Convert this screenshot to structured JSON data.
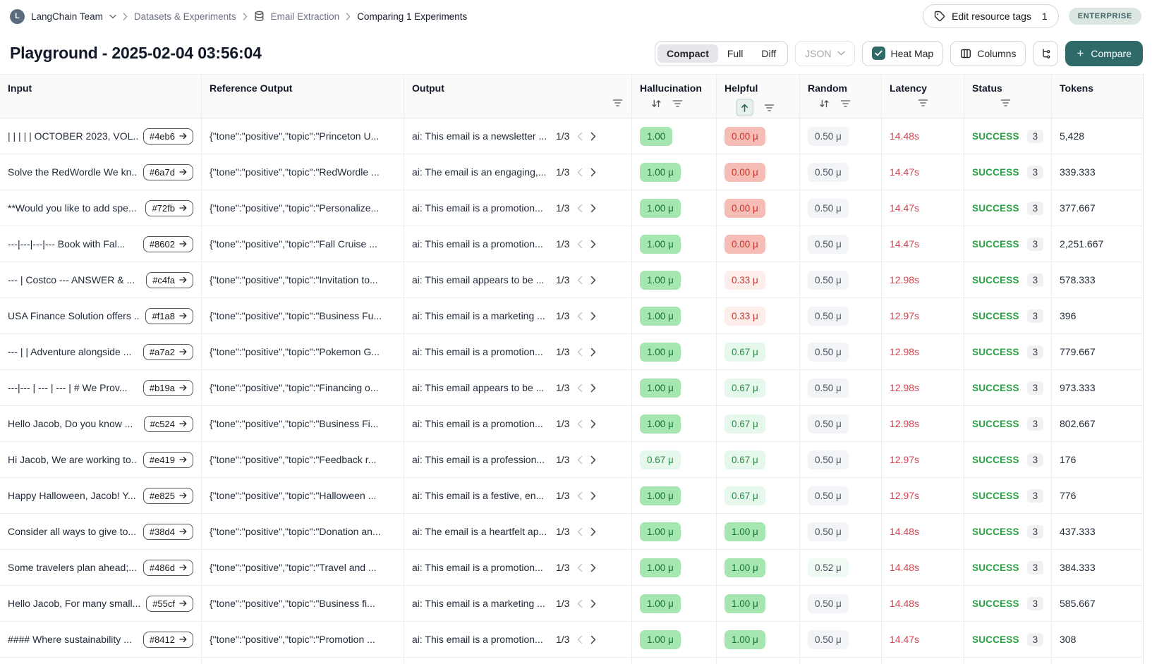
{
  "breadcrumb": {
    "team": "LangChain Team",
    "crumb1": "Datasets & Experiments",
    "crumb2": "Email Extraction",
    "crumb3": "Comparing 1 Experiments"
  },
  "header": {
    "edit_tags_label": "Edit resource tags",
    "edit_tags_count": "1",
    "plan_badge": "ENTERPRISE",
    "title": "Playground - 2025-02-04 03:56:04"
  },
  "toolbar": {
    "view_modes": [
      "Compact",
      "Full",
      "Diff"
    ],
    "active_view": "Compact",
    "json_label": "JSON",
    "heatmap_label": "Heat Map",
    "heatmap_checked": true,
    "columns_label": "Columns",
    "compare_label": "Compare",
    "accent_color": "#2f6a69"
  },
  "table": {
    "columns": [
      {
        "label": "Input",
        "sort": "none",
        "filter": false
      },
      {
        "label": "Reference Output",
        "sort": "none",
        "filter": false
      },
      {
        "label": "Output",
        "sort": "none",
        "filter": true
      },
      {
        "label": "Hallucination",
        "sort": "both",
        "filter": true
      },
      {
        "label": "Helpful",
        "sort": "asc",
        "filter": true
      },
      {
        "label": "Random",
        "sort": "both",
        "filter": true
      },
      {
        "label": "Latency",
        "sort": "none",
        "filter": true
      },
      {
        "label": "Status",
        "sort": "none",
        "filter": true
      },
      {
        "label": "Tokens",
        "sort": "none",
        "filter": false
      }
    ],
    "rows": [
      {
        "input": "| | | | | OCTOBER 2023, VOL...",
        "hash": "#4eb6",
        "reference": "{\"tone\":\"positive\",\"topic\":\"Princeton U...",
        "output": "ai: This email is a newsletter ...",
        "pager": "1/3",
        "hallucination": {
          "text": "1.00",
          "tone": "g2"
        },
        "helpful": {
          "text": "0.00 μ",
          "tone": "r2"
        },
        "random": {
          "text": "0.50 μ",
          "tone": "n"
        },
        "latency": "14.48s",
        "status": "SUCCESS",
        "status_count": "3",
        "tokens": "5,428"
      },
      {
        "input": "Solve the RedWordle We kn...",
        "hash": "#6a7d",
        "reference": "{\"tone\":\"positive\",\"topic\":\"RedWordle ...",
        "output": "ai: The email is an engaging,...",
        "pager": "1/3",
        "hallucination": {
          "text": "1.00 μ",
          "tone": "g2"
        },
        "helpful": {
          "text": "0.00 μ",
          "tone": "r2"
        },
        "random": {
          "text": "0.50 μ",
          "tone": "n"
        },
        "latency": "14.47s",
        "status": "SUCCESS",
        "status_count": "3",
        "tokens": "339.333"
      },
      {
        "input": "**Would you like to add spe...",
        "hash": "#72fb",
        "reference": "{\"tone\":\"positive\",\"topic\":\"Personalize...",
        "output": "ai: This email is a promotion...",
        "pager": "1/3",
        "hallucination": {
          "text": "1.00 μ",
          "tone": "g2"
        },
        "helpful": {
          "text": "0.00 μ",
          "tone": "r2"
        },
        "random": {
          "text": "0.50 μ",
          "tone": "n"
        },
        "latency": "14.47s",
        "status": "SUCCESS",
        "status_count": "3",
        "tokens": "377.667"
      },
      {
        "input": "---|---|---|--- Book with Fal...",
        "hash": "#8602",
        "reference": "{\"tone\":\"positive\",\"topic\":\"Fall Cruise ...",
        "output": "ai: This email is a promotion...",
        "pager": "1/3",
        "hallucination": {
          "text": "1.00 μ",
          "tone": "g2"
        },
        "helpful": {
          "text": "0.00 μ",
          "tone": "r2"
        },
        "random": {
          "text": "0.50 μ",
          "tone": "n"
        },
        "latency": "14.47s",
        "status": "SUCCESS",
        "status_count": "3",
        "tokens": "2,251.667"
      },
      {
        "input": "--- | Costco --- ANSWER & ...",
        "hash": "#c4fa",
        "reference": "{\"tone\":\"positive\",\"topic\":\"Invitation to...",
        "output": "ai: This email appears to be ...",
        "pager": "1/3",
        "hallucination": {
          "text": "1.00 μ",
          "tone": "g2"
        },
        "helpful": {
          "text": "0.33 μ",
          "tone": "r1"
        },
        "random": {
          "text": "0.50 μ",
          "tone": "n"
        },
        "latency": "12.98s",
        "status": "SUCCESS",
        "status_count": "3",
        "tokens": "578.333"
      },
      {
        "input": "USA Finance Solution offers ...",
        "hash": "#f1a8",
        "reference": "{\"tone\":\"positive\",\"topic\":\"Business Fu...",
        "output": "ai: This email is a marketing ...",
        "pager": "1/3",
        "hallucination": {
          "text": "1.00 μ",
          "tone": "g2"
        },
        "helpful": {
          "text": "0.33 μ",
          "tone": "r1"
        },
        "random": {
          "text": "0.50 μ",
          "tone": "n"
        },
        "latency": "12.97s",
        "status": "SUCCESS",
        "status_count": "3",
        "tokens": "396"
      },
      {
        "input": "--- | | Adventure alongside ...",
        "hash": "#a7a2",
        "reference": "{\"tone\":\"positive\",\"topic\":\"Pokemon G...",
        "output": "ai: This email is a promotion...",
        "pager": "1/3",
        "hallucination": {
          "text": "1.00 μ",
          "tone": "g2"
        },
        "helpful": {
          "text": "0.67 μ",
          "tone": "g1"
        },
        "random": {
          "text": "0.50 μ",
          "tone": "n"
        },
        "latency": "12.98s",
        "status": "SUCCESS",
        "status_count": "3",
        "tokens": "779.667"
      },
      {
        "input": "---|--- | --- | --- | # We Prov...",
        "hash": "#b19a",
        "reference": "{\"tone\":\"positive\",\"topic\":\"Financing o...",
        "output": "ai: This email appears to be ...",
        "pager": "1/3",
        "hallucination": {
          "text": "1.00 μ",
          "tone": "g2"
        },
        "helpful": {
          "text": "0.67 μ",
          "tone": "g1"
        },
        "random": {
          "text": "0.50 μ",
          "tone": "n"
        },
        "latency": "12.98s",
        "status": "SUCCESS",
        "status_count": "3",
        "tokens": "973.333"
      },
      {
        "input": "Hello Jacob, Do you know ...",
        "hash": "#c524",
        "reference": "{\"tone\":\"positive\",\"topic\":\"Business Fi...",
        "output": "ai: This email is a promotion...",
        "pager": "1/3",
        "hallucination": {
          "text": "1.00 μ",
          "tone": "g2"
        },
        "helpful": {
          "text": "0.67 μ",
          "tone": "g1"
        },
        "random": {
          "text": "0.50 μ",
          "tone": "n"
        },
        "latency": "12.98s",
        "status": "SUCCESS",
        "status_count": "3",
        "tokens": "802.667"
      },
      {
        "input": "Hi Jacob, We are working to...",
        "hash": "#e419",
        "reference": "{\"tone\":\"positive\",\"topic\":\"Feedback r...",
        "output": "ai: This email is a profession...",
        "pager": "1/3",
        "hallucination": {
          "text": "0.67 μ",
          "tone": "g1"
        },
        "helpful": {
          "text": "0.67 μ",
          "tone": "g1"
        },
        "random": {
          "text": "0.50 μ",
          "tone": "n"
        },
        "latency": "12.97s",
        "status": "SUCCESS",
        "status_count": "3",
        "tokens": "176"
      },
      {
        "input": "Happy Halloween, Jacob! Y...",
        "hash": "#e825",
        "reference": "{\"tone\":\"positive\",\"topic\":\"Halloween ...",
        "output": "ai: This email is a festive, en...",
        "pager": "1/3",
        "hallucination": {
          "text": "1.00 μ",
          "tone": "g2"
        },
        "helpful": {
          "text": "0.67 μ",
          "tone": "g1"
        },
        "random": {
          "text": "0.50 μ",
          "tone": "n"
        },
        "latency": "12.97s",
        "status": "SUCCESS",
        "status_count": "3",
        "tokens": "776"
      },
      {
        "input": "Consider all ways to give to...",
        "hash": "#38d4",
        "reference": "{\"tone\":\"positive\",\"topic\":\"Donation an...",
        "output": "ai: The email is a heartfelt ap...",
        "pager": "1/3",
        "hallucination": {
          "text": "1.00 μ",
          "tone": "g2"
        },
        "helpful": {
          "text": "1.00 μ",
          "tone": "g2"
        },
        "random": {
          "text": "0.50 μ",
          "tone": "n"
        },
        "latency": "14.48s",
        "status": "SUCCESS",
        "status_count": "3",
        "tokens": "437.333"
      },
      {
        "input": "Some travelers plan ahead;...",
        "hash": "#486d",
        "reference": "{\"tone\":\"positive\",\"topic\":\"Travel and ...",
        "output": "ai: This email is a promotion...",
        "pager": "1/3",
        "hallucination": {
          "text": "1.00 μ",
          "tone": "g2"
        },
        "helpful": {
          "text": "1.00 μ",
          "tone": "g2"
        },
        "random": {
          "text": "0.52 μ",
          "tone": "g0"
        },
        "latency": "14.48s",
        "status": "SUCCESS",
        "status_count": "3",
        "tokens": "384.333"
      },
      {
        "input": "Hello Jacob, For many small...",
        "hash": "#55cf",
        "reference": "{\"tone\":\"positive\",\"topic\":\"Business fi...",
        "output": "ai: This email is a marketing ...",
        "pager": "1/3",
        "hallucination": {
          "text": "1.00 μ",
          "tone": "g2"
        },
        "helpful": {
          "text": "1.00 μ",
          "tone": "g2"
        },
        "random": {
          "text": "0.50 μ",
          "tone": "n"
        },
        "latency": "14.48s",
        "status": "SUCCESS",
        "status_count": "3",
        "tokens": "585.667"
      },
      {
        "input": "#### Where sustainability ...",
        "hash": "#8412",
        "reference": "{\"tone\":\"positive\",\"topic\":\"Promotion ...",
        "output": "ai: This email is a promotion...",
        "pager": "1/3",
        "hallucination": {
          "text": "1.00 μ",
          "tone": "g2"
        },
        "helpful": {
          "text": "1.00 μ",
          "tone": "g2"
        },
        "random": {
          "text": "0.50 μ",
          "tone": "n"
        },
        "latency": "14.47s",
        "status": "SUCCESS",
        "status_count": "3",
        "tokens": "308"
      }
    ]
  }
}
